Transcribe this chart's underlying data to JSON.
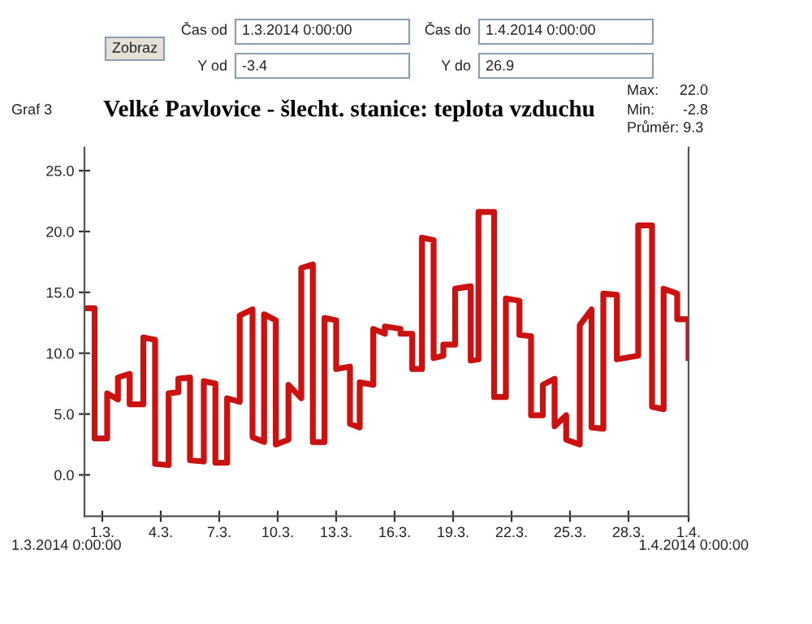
{
  "chart_data": {
    "type": "line",
    "title": "Velké Pavlovice - šlecht. stanice: teplota vzduchu",
    "xlim": [
      "2014-03-01T00:00",
      "2014-04-01T00:00"
    ],
    "ylim": [
      -3.4,
      26.9
    ],
    "xticks": [
      {
        "value": "2014-03-01T22:00",
        "label": "1.3."
      },
      {
        "value": "2014-03-04T22:00",
        "label": "4.3."
      },
      {
        "value": "2014-03-07T22:00",
        "label": "7.3."
      },
      {
        "value": "2014-03-10T22:00",
        "label": "10.3."
      },
      {
        "value": "2014-03-13T22:00",
        "label": "13.3."
      },
      {
        "value": "2014-03-16T22:00",
        "label": "16.3."
      },
      {
        "value": "2014-03-19T22:00",
        "label": "19.3."
      },
      {
        "value": "2014-03-22T22:00",
        "label": "22.3."
      },
      {
        "value": "2014-03-25T22:00",
        "label": "25.3."
      },
      {
        "value": "2014-03-28T22:00",
        "label": "28.3."
      },
      {
        "value": "2014-04-01T00:00",
        "label": "1.4."
      }
    ],
    "yticks": [
      {
        "value": 0,
        "label": "0.0"
      },
      {
        "value": 5,
        "label": "5.0"
      },
      {
        "value": 10,
        "label": "10.0"
      },
      {
        "value": 15,
        "label": "15.0"
      },
      {
        "value": 20,
        "label": "20.0"
      },
      {
        "value": 25,
        "label": "25.0"
      }
    ],
    "grid": false,
    "legend": false,
    "marker": "none",
    "line_style": "solid",
    "series": [
      {
        "color": "#cc1111",
        "x": [
          "2014-03-01T00:00",
          "2014-03-01T12:30",
          "2014-03-01T12:30",
          "2014-03-02T04:00",
          "2014-03-02T04:00",
          "2014-03-02T17:15",
          "2014-03-02T17:15",
          "2014-03-03T07:40",
          "2014-03-03T07:40",
          "2014-03-04T00:30",
          "2014-03-04T00:30",
          "2014-03-04T15:00",
          "2014-03-04T15:00",
          "2014-03-05T07:40",
          "2014-03-05T07:40",
          "2014-03-05T19:40",
          "2014-03-05T19:40",
          "2014-03-06T10:00",
          "2014-03-06T10:00",
          "2014-03-07T03:00",
          "2014-03-07T03:00",
          "2014-03-07T17:15",
          "2014-03-07T17:15",
          "2014-03-08T07:40",
          "2014-03-08T07:40",
          "2014-03-08T23:15",
          "2014-03-08T23:15",
          "2014-03-09T15:00",
          "2014-03-09T15:00",
          "2014-03-10T05:15",
          "2014-03-10T05:15",
          "2014-03-10T19:40",
          "2014-03-10T19:40",
          "2014-03-11T11:15",
          "2014-03-11T11:15",
          "2014-03-12T03:00",
          "2014-03-12T03:00",
          "2014-03-12T17:15",
          "2014-03-12T17:15",
          "2014-03-13T07:40",
          "2014-03-13T07:40",
          "2014-03-13T22:00",
          "2014-03-13T22:00",
          "2014-03-14T15:00",
          "2014-03-14T15:00",
          "2014-03-15T03:00",
          "2014-03-15T03:00",
          "2014-03-15T19:40",
          "2014-03-15T19:40",
          "2014-03-16T10:00",
          "2014-03-16T10:00",
          "2014-03-17T05:15",
          "2014-03-17T05:15",
          "2014-03-17T19:40",
          "2014-03-17T19:40",
          "2014-03-18T07:40",
          "2014-03-18T07:40",
          "2014-03-18T22:00",
          "2014-03-18T22:00",
          "2014-03-19T10:00",
          "2014-03-19T10:00",
          "2014-03-20T00:30",
          "2014-03-20T00:30",
          "2014-03-20T19:40",
          "2014-03-20T19:40",
          "2014-03-21T05:15",
          "2014-03-21T05:15",
          "2014-03-22T00:30",
          "2014-03-22T00:30",
          "2014-03-22T15:00",
          "2014-03-22T15:00",
          "2014-03-23T07:40",
          "2014-03-23T07:40",
          "2014-03-23T22:00",
          "2014-03-23T22:00",
          "2014-03-24T12:30",
          "2014-03-24T12:30",
          "2014-03-25T03:00",
          "2014-03-25T03:00",
          "2014-03-25T17:15",
          "2014-03-25T17:15",
          "2014-03-26T10:00",
          "2014-03-26T10:00",
          "2014-03-27T00:30",
          "2014-03-27T00:30",
          "2014-03-27T15:00",
          "2014-03-27T15:00",
          "2014-03-28T07:40",
          "2014-03-28T07:40",
          "2014-03-29T10:00",
          "2014-03-29T10:00",
          "2014-03-30T03:00",
          "2014-03-30T03:00",
          "2014-03-30T17:15",
          "2014-03-30T17:15",
          "2014-03-31T10:00",
          "2014-03-31T10:00",
          "2014-04-01T00:00",
          "2014-04-01T00:00"
        ],
        "values": [
          13.7,
          13.7,
          3.0,
          3.0,
          6.7,
          6.2,
          8.0,
          8.3,
          5.8,
          5.8,
          11.3,
          11.1,
          0.9,
          0.8,
          6.7,
          6.8,
          7.9,
          8.0,
          1.2,
          1.1,
          7.7,
          7.5,
          1.0,
          1.0,
          6.3,
          6.0,
          13.1,
          13.6,
          3.1,
          2.7,
          13.2,
          12.7,
          2.5,
          2.9,
          7.4,
          6.3,
          17.0,
          17.3,
          2.7,
          2.7,
          12.9,
          12.7,
          8.7,
          8.9,
          4.2,
          3.9,
          7.6,
          7.4,
          12.0,
          11.6,
          12.2,
          12.0,
          11.6,
          11.6,
          8.7,
          8.7,
          19.5,
          19.3,
          9.6,
          9.8,
          10.7,
          10.7,
          15.3,
          15.5,
          9.4,
          9.5,
          21.6,
          21.6,
          6.4,
          6.4,
          14.5,
          14.3,
          11.5,
          11.4,
          4.9,
          4.9,
          7.4,
          7.9,
          4.0,
          4.9,
          2.9,
          2.5,
          12.3,
          13.6,
          3.9,
          3.8,
          14.9,
          14.8,
          9.5,
          9.8,
          20.5,
          20.5,
          5.6,
          5.4,
          15.3,
          14.9,
          12.8,
          12.8,
          9.6
        ]
      }
    ],
    "annotations": [
      "Zobraz",
      "Čas od",
      "1.3.2014 0:00:00",
      "Čas do",
      "1.4.2014 0:00:00",
      "Y od",
      "-3.4",
      "Y do",
      "26.9",
      "Graf 3",
      "Max:",
      "22.0",
      "Min:",
      "-2.8",
      "Průměr: 9.3",
      "1.3.2014 0:00:00",
      "1.4.2014 0:00:00"
    ]
  }
}
